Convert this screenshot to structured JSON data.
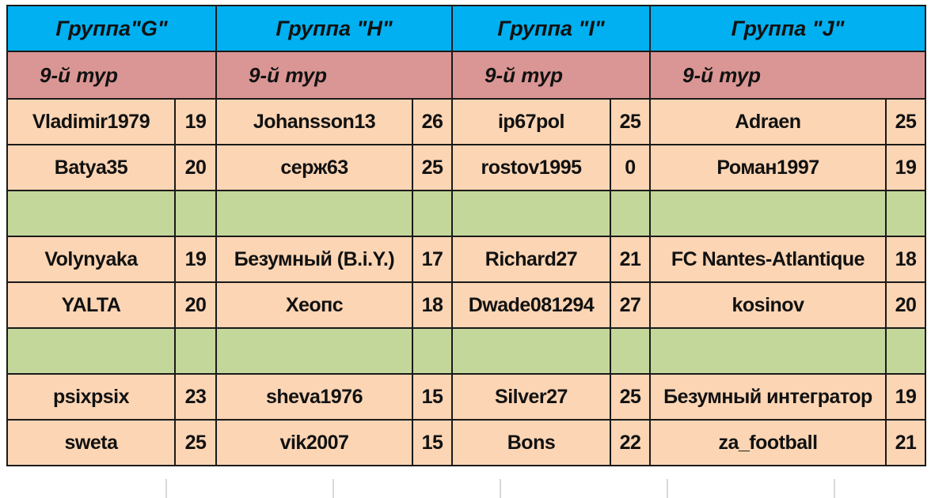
{
  "colors": {
    "group_header_bg": "#00b0f0",
    "round_header_bg": "#da9694",
    "player_cell_bg": "#fcd5b4",
    "separator_bg": "#c4d79b",
    "border": "#1a1a1a"
  },
  "groups": [
    {
      "title": "Группа\"G\"",
      "round": "9-й тур",
      "rows": [
        {
          "name": "Vladimir1979",
          "score": "19"
        },
        {
          "name": "Batya35",
          "score": "20"
        },
        {
          "name": "Volynyaka",
          "score": "19"
        },
        {
          "name": "YALTA",
          "score": "20"
        },
        {
          "name": "psixpsix",
          "score": "23"
        },
        {
          "name": "sweta",
          "score": "25"
        }
      ]
    },
    {
      "title": "Группа \"H\"",
      "round": "9-й тур",
      "rows": [
        {
          "name": "Johansson13",
          "score": "26"
        },
        {
          "name": "серж63",
          "score": "25"
        },
        {
          "name": "Безумный (B.i.Y.)",
          "score": "17"
        },
        {
          "name": "Хеопс",
          "score": "18"
        },
        {
          "name": "sheva1976",
          "score": "15"
        },
        {
          "name": "vik2007",
          "score": "15"
        }
      ]
    },
    {
      "title": "Группа \"I\"",
      "round": "9-й тур",
      "rows": [
        {
          "name": "ip67pol",
          "score": "25"
        },
        {
          "name": "rostov1995",
          "score": "0"
        },
        {
          "name": "Richard27",
          "score": "21"
        },
        {
          "name": "Dwade081294",
          "score": "27"
        },
        {
          "name": "Silver27",
          "score": "25"
        },
        {
          "name": "Bons",
          "score": "22"
        }
      ]
    },
    {
      "title": "Группа \"J\"",
      "round": "9-й тур",
      "rows": [
        {
          "name": "Adraen",
          "score": "25"
        },
        {
          "name": "Роман1997",
          "score": "19"
        },
        {
          "name": "FC Nantes-Atlantique",
          "score": "18"
        },
        {
          "name": "kosinov",
          "score": "20"
        },
        {
          "name": "Безумный интегратор",
          "score": "19"
        },
        {
          "name": "za_football",
          "score": "21"
        }
      ]
    }
  ]
}
